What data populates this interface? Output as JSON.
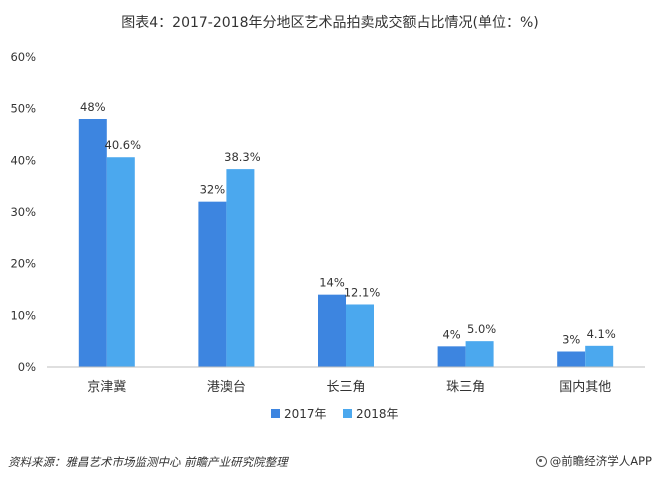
{
  "title": "图表4：2017-2018年分地区艺术品拍卖成交额占比情况(单位：%)",
  "source": "资料来源：雅昌艺术市场监测中心 前瞻产业研究院整理",
  "brand": "@前瞻经济学人APP",
  "colors": {
    "series_2017": "#3d85e0",
    "series_2018": "#4ba8ee",
    "axis": "#bfbfbf",
    "text": "#333333"
  },
  "chart_data": {
    "type": "bar",
    "categories": [
      "京津冀",
      "港澳台",
      "长三角",
      "珠三角",
      "国内其他"
    ],
    "series": [
      {
        "name": "2017年",
        "values": [
          48,
          32,
          14,
          4,
          3
        ],
        "labels": [
          "48%",
          "32%",
          "14%",
          "4%",
          "3%"
        ],
        "color": "#3d85e0"
      },
      {
        "name": "2018年",
        "values": [
          40.6,
          38.3,
          12.1,
          5.0,
          4.1
        ],
        "labels": [
          "40.6%",
          "38.3%",
          "12.1%",
          "5.0%",
          "4.1%"
        ],
        "color": "#4ba8ee"
      }
    ],
    "ylim": [
      0,
      60
    ],
    "yticks": [
      0,
      10,
      20,
      30,
      40,
      50,
      60
    ],
    "ytick_labels": [
      "0%",
      "10%",
      "20%",
      "30%",
      "40%",
      "50%",
      "60%"
    ],
    "grid": false,
    "legend_position": "bottom-center"
  }
}
